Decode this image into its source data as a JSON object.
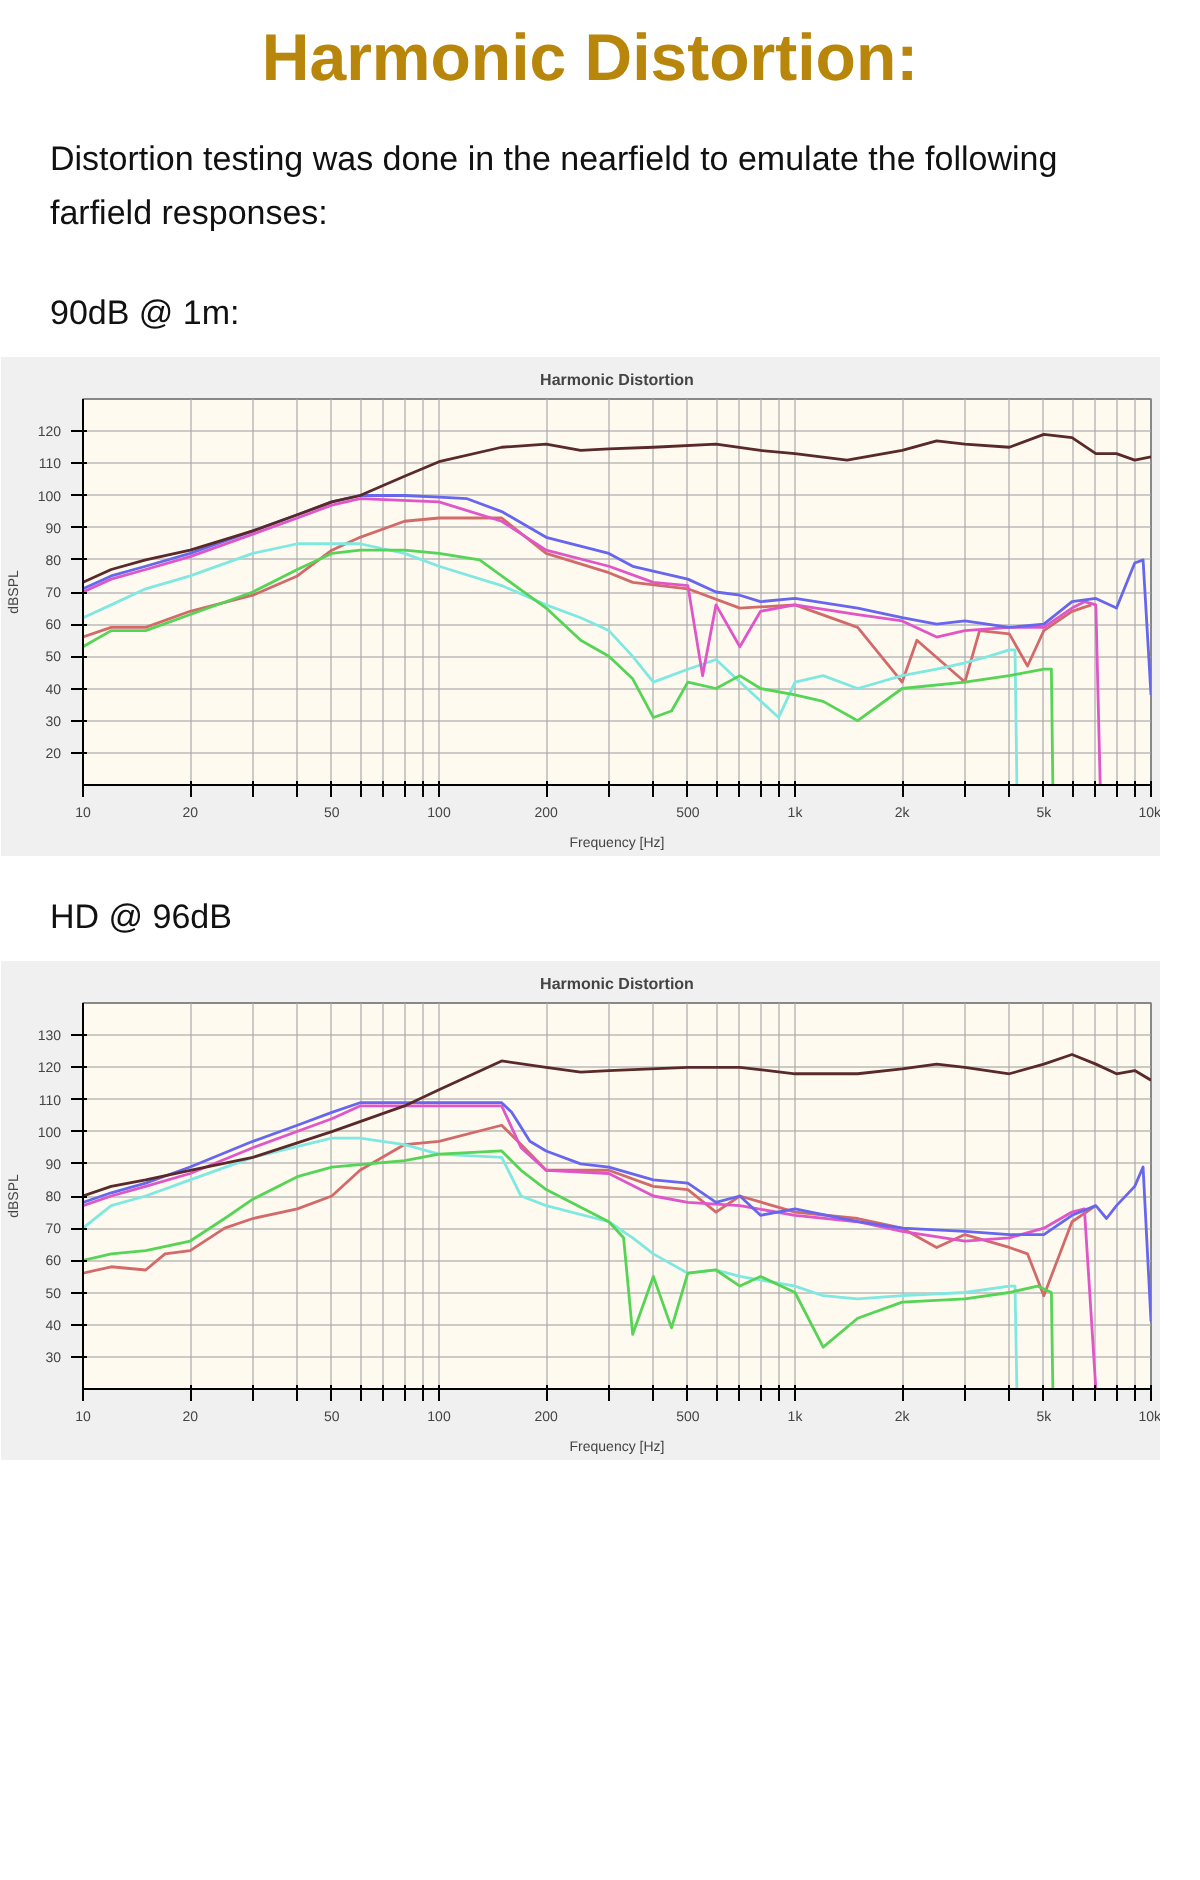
{
  "chart_data": [
    {
      "type": "line",
      "annotations": [
        "Harmonic Distortion:",
        "Distortion testing was done in the nearfield to emulate the following farfield responses:"
      ],
      "subtitle": "90dB @ 1m:",
      "title": "Harmonic Distortion",
      "xlabel": "Frequency [Hz]",
      "ylabel": "dBSPL",
      "log": "x",
      "grid": true,
      "marker": "none",
      "xlim": [
        10,
        10000
      ],
      "xticks": [
        10,
        20,
        {
          "value": 30,
          "label": null
        },
        {
          "value": 40,
          "label": null
        },
        50,
        {
          "value": 60,
          "label": null
        },
        {
          "value": 70,
          "label": null
        },
        {
          "value": 80,
          "label": null
        },
        {
          "value": 90,
          "label": null
        },
        100,
        200,
        {
          "value": 300,
          "label": null
        },
        {
          "value": 400,
          "label": null
        },
        500,
        {
          "value": 600,
          "label": null
        },
        {
          "value": 700,
          "label": null
        },
        {
          "value": 800,
          "label": null
        },
        {
          "value": 900,
          "label": null
        },
        {
          "value": 1000,
          "label": "1k"
        },
        {
          "value": 2000,
          "label": "2k"
        },
        {
          "value": 3000,
          "label": null
        },
        {
          "value": 4000,
          "label": null
        },
        {
          "value": 5000,
          "label": "5k"
        },
        {
          "value": 6000,
          "label": null
        },
        {
          "value": 7000,
          "label": null
        },
        {
          "value": 8000,
          "label": null
        },
        {
          "value": 9000,
          "label": null
        },
        {
          "value": 10000,
          "label": "10k"
        }
      ],
      "ylim": [
        10,
        130
      ],
      "yticks": [
        20,
        30,
        40,
        50,
        60,
        70,
        80,
        90,
        100,
        110,
        120
      ],
      "series": [
        {
          "color": "#d26a6a",
          "x": [
            10,
            12,
            15,
            20,
            30,
            40,
            50,
            60,
            80,
            100,
            150,
            200,
            300,
            350,
            500,
            700,
            1000,
            1500,
            2000,
            2200,
            3000,
            3300,
            4000,
            4500,
            5000,
            6000,
            6800
          ],
          "values": [
            56,
            59,
            59,
            64,
            69,
            75,
            83,
            87,
            92,
            93,
            93,
            82,
            76,
            73,
            71,
            65,
            66,
            59,
            42,
            55,
            42,
            58,
            57,
            47,
            58,
            64,
            66
          ]
        },
        {
          "color": "#7fe8e0",
          "x": [
            10,
            12,
            15,
            20,
            30,
            40,
            60,
            80,
            100,
            150,
            200,
            250,
            300,
            350,
            400,
            500,
            600,
            700,
            900,
            1000,
            1200,
            1500,
            2000,
            2500,
            3000,
            3500,
            4000,
            4150,
            4200
          ],
          "values": [
            62,
            66,
            71,
            75,
            82,
            85,
            85,
            82,
            78,
            72,
            66,
            62,
            58,
            50,
            42,
            46,
            49,
            42,
            31,
            42,
            44,
            40,
            44,
            46,
            48,
            50,
            52,
            52,
            10
          ]
        },
        {
          "color": "#55d455",
          "x": [
            10,
            12,
            15,
            20,
            30,
            40,
            50,
            60,
            80,
            100,
            130,
            150,
            200,
            250,
            300,
            350,
            400,
            450,
            500,
            600,
            700,
            800,
            1000,
            1200,
            1500,
            2000,
            3000,
            4000,
            5000,
            5250,
            5300
          ],
          "values": [
            53,
            58,
            58,
            63,
            70,
            77,
            82,
            83,
            83,
            82,
            80,
            75,
            65,
            55,
            50,
            43,
            31,
            33,
            42,
            40,
            44,
            40,
            38,
            36,
            30,
            40,
            42,
            44,
            46,
            46,
            10
          ]
        },
        {
          "color": "#e055c8",
          "x": [
            10,
            12,
            15,
            20,
            30,
            40,
            50,
            60,
            100,
            150,
            200,
            300,
            400,
            500,
            550,
            600,
            700,
            800,
            1000,
            1500,
            2000,
            2500,
            3000,
            4000,
            5000,
            6000,
            6500,
            7000,
            7200
          ],
          "values": [
            70,
            74,
            77,
            81,
            88,
            93,
            97,
            99,
            98,
            92,
            83,
            78,
            73,
            72,
            44,
            66,
            53,
            64,
            66,
            63,
            61,
            56,
            58,
            59,
            59,
            65,
            67,
            66,
            10
          ]
        },
        {
          "color": "#6666ee",
          "x": [
            10,
            12,
            15,
            20,
            30,
            40,
            50,
            60,
            80,
            100,
            120,
            150,
            200,
            300,
            350,
            500,
            600,
            700,
            800,
            1000,
            1500,
            2000,
            2500,
            3000,
            4000,
            5000,
            6000,
            7000,
            8000,
            9000,
            9500,
            10000
          ],
          "values": [
            71,
            75,
            78,
            82,
            89,
            94,
            98,
            100,
            100,
            99.5,
            99,
            95,
            87,
            82,
            78,
            74,
            70,
            69,
            67,
            68,
            65,
            62,
            60,
            61,
            59,
            60,
            67,
            68,
            65,
            79,
            80,
            38
          ]
        },
        {
          "color": "#5a2a2a",
          "x": [
            10,
            12,
            15,
            20,
            30,
            40,
            50,
            60,
            80,
            100,
            150,
            200,
            250,
            300,
            400,
            600,
            800,
            1000,
            1400,
            2000,
            2500,
            3000,
            4000,
            5000,
            6000,
            7000,
            8000,
            9000,
            10000
          ],
          "values": [
            73,
            77,
            80,
            83,
            89,
            94,
            98,
            100,
            106,
            110.5,
            115,
            116,
            114,
            114.5,
            115,
            116,
            114,
            113,
            111,
            114,
            117,
            116,
            115,
            119,
            118,
            113,
            113,
            111,
            112
          ]
        }
      ]
    },
    {
      "type": "line",
      "subtitle": "HD @ 96dB",
      "title": "Harmonic Distortion",
      "xlabel": "Frequency [Hz]",
      "ylabel": "dBSPL",
      "log": "x",
      "grid": true,
      "marker": "none",
      "xlim": [
        10,
        10000
      ],
      "xticks": [
        10,
        20,
        {
          "value": 30,
          "label": null
        },
        {
          "value": 40,
          "label": null
        },
        50,
        {
          "value": 60,
          "label": null
        },
        {
          "value": 70,
          "label": null
        },
        {
          "value": 80,
          "label": null
        },
        {
          "value": 90,
          "label": null
        },
        100,
        200,
        {
          "value": 300,
          "label": null
        },
        {
          "value": 400,
          "label": null
        },
        500,
        {
          "value": 600,
          "label": null
        },
        {
          "value": 700,
          "label": null
        },
        {
          "value": 800,
          "label": null
        },
        {
          "value": 900,
          "label": null
        },
        {
          "value": 1000,
          "label": "1k"
        },
        {
          "value": 2000,
          "label": "2k"
        },
        {
          "value": 3000,
          "label": null
        },
        {
          "value": 4000,
          "label": null
        },
        {
          "value": 5000,
          "label": "5k"
        },
        {
          "value": 6000,
          "label": null
        },
        {
          "value": 7000,
          "label": null
        },
        {
          "value": 8000,
          "label": null
        },
        {
          "value": 9000,
          "label": null
        },
        {
          "value": 10000,
          "label": "10k"
        }
      ],
      "ylim": [
        20,
        140
      ],
      "yticks": [
        30,
        40,
        50,
        60,
        70,
        80,
        90,
        100,
        110,
        120,
        130
      ],
      "series": [
        {
          "color": "#d26a6a",
          "x": [
            10,
            12,
            15,
            17,
            20,
            25,
            30,
            40,
            50,
            60,
            80,
            100,
            150,
            170,
            200,
            300,
            400,
            500,
            600,
            700,
            1000,
            1500,
            2000,
            2500,
            3000,
            4000,
            4500,
            5000,
            6000,
            7000
          ],
          "values": [
            56,
            58,
            57,
            62,
            63,
            70,
            73,
            76,
            80,
            88,
            96,
            97,
            102,
            96,
            88,
            88,
            83,
            82,
            75,
            80,
            75,
            73,
            70,
            64,
            68,
            64,
            62,
            49,
            72,
            77
          ]
        },
        {
          "color": "#7fe8e0",
          "x": [
            10,
            12,
            15,
            20,
            30,
            50,
            60,
            80,
            100,
            150,
            170,
            200,
            300,
            350,
            400,
            500,
            600,
            700,
            1000,
            1200,
            1500,
            2000,
            3000,
            4000,
            4150,
            4200
          ],
          "values": [
            70,
            77,
            80,
            85,
            92,
            98,
            98,
            96,
            93,
            92,
            80,
            77,
            72,
            67,
            62,
            56,
            57,
            55,
            52,
            49,
            48,
            49,
            50,
            52,
            52,
            20
          ]
        },
        {
          "color": "#55d455",
          "x": [
            10,
            12,
            15,
            20,
            25,
            30,
            40,
            50,
            80,
            100,
            150,
            170,
            200,
            300,
            330,
            350,
            400,
            450,
            500,
            600,
            700,
            800,
            1000,
            1200,
            1500,
            2000,
            3000,
            4000,
            4800,
            5250,
            5300
          ],
          "values": [
            60,
            62,
            63,
            66,
            73,
            79,
            86,
            89,
            91,
            93,
            94,
            88,
            82,
            72,
            67,
            37,
            55,
            39,
            56,
            57,
            52,
            55,
            50,
            33,
            42,
            47,
            48,
            50,
            52,
            50,
            20
          ]
        },
        {
          "color": "#e055c8",
          "x": [
            10,
            12,
            15,
            20,
            30,
            50,
            60,
            100,
            150,
            170,
            200,
            300,
            400,
            500,
            700,
            1000,
            1500,
            2000,
            3000,
            4000,
            5000,
            6000,
            6500,
            7000
          ],
          "values": [
            77,
            80,
            83,
            87,
            95,
            104,
            108,
            108,
            108,
            95,
            88,
            87,
            80,
            78,
            77,
            74,
            72,
            69,
            66,
            67,
            70,
            75,
            76,
            20
          ]
        },
        {
          "color": "#6666ee",
          "x": [
            10,
            12,
            15,
            20,
            30,
            40,
            50,
            60,
            80,
            100,
            150,
            160,
            180,
            200,
            250,
            300,
            400,
            500,
            600,
            700,
            800,
            1000,
            1500,
            2000,
            3000,
            4000,
            5000,
            6000,
            7000,
            7500,
            8000,
            9000,
            9500,
            10000
          ],
          "values": [
            78,
            81,
            84,
            89,
            97,
            102,
            106,
            109,
            109,
            109,
            109,
            106,
            97,
            94,
            90,
            89,
            85,
            84,
            78,
            80,
            74,
            76,
            72,
            70,
            69,
            68,
            68,
            74,
            77,
            73,
            77,
            83,
            89,
            41
          ]
        },
        {
          "color": "#5a2a2a",
          "x": [
            10,
            12,
            15,
            20,
            30,
            50,
            80,
            100,
            150,
            200,
            250,
            300,
            500,
            700,
            1000,
            1500,
            2000,
            2500,
            3000,
            4000,
            5000,
            6000,
            7000,
            8000,
            9000,
            10000
          ],
          "values": [
            80,
            83,
            85,
            88,
            92,
            100,
            108,
            113,
            122,
            120,
            118.5,
            119,
            120,
            120,
            118,
            118,
            119.5,
            121,
            120,
            118,
            121,
            124,
            121,
            118,
            119,
            116
          ]
        }
      ]
    }
  ]
}
